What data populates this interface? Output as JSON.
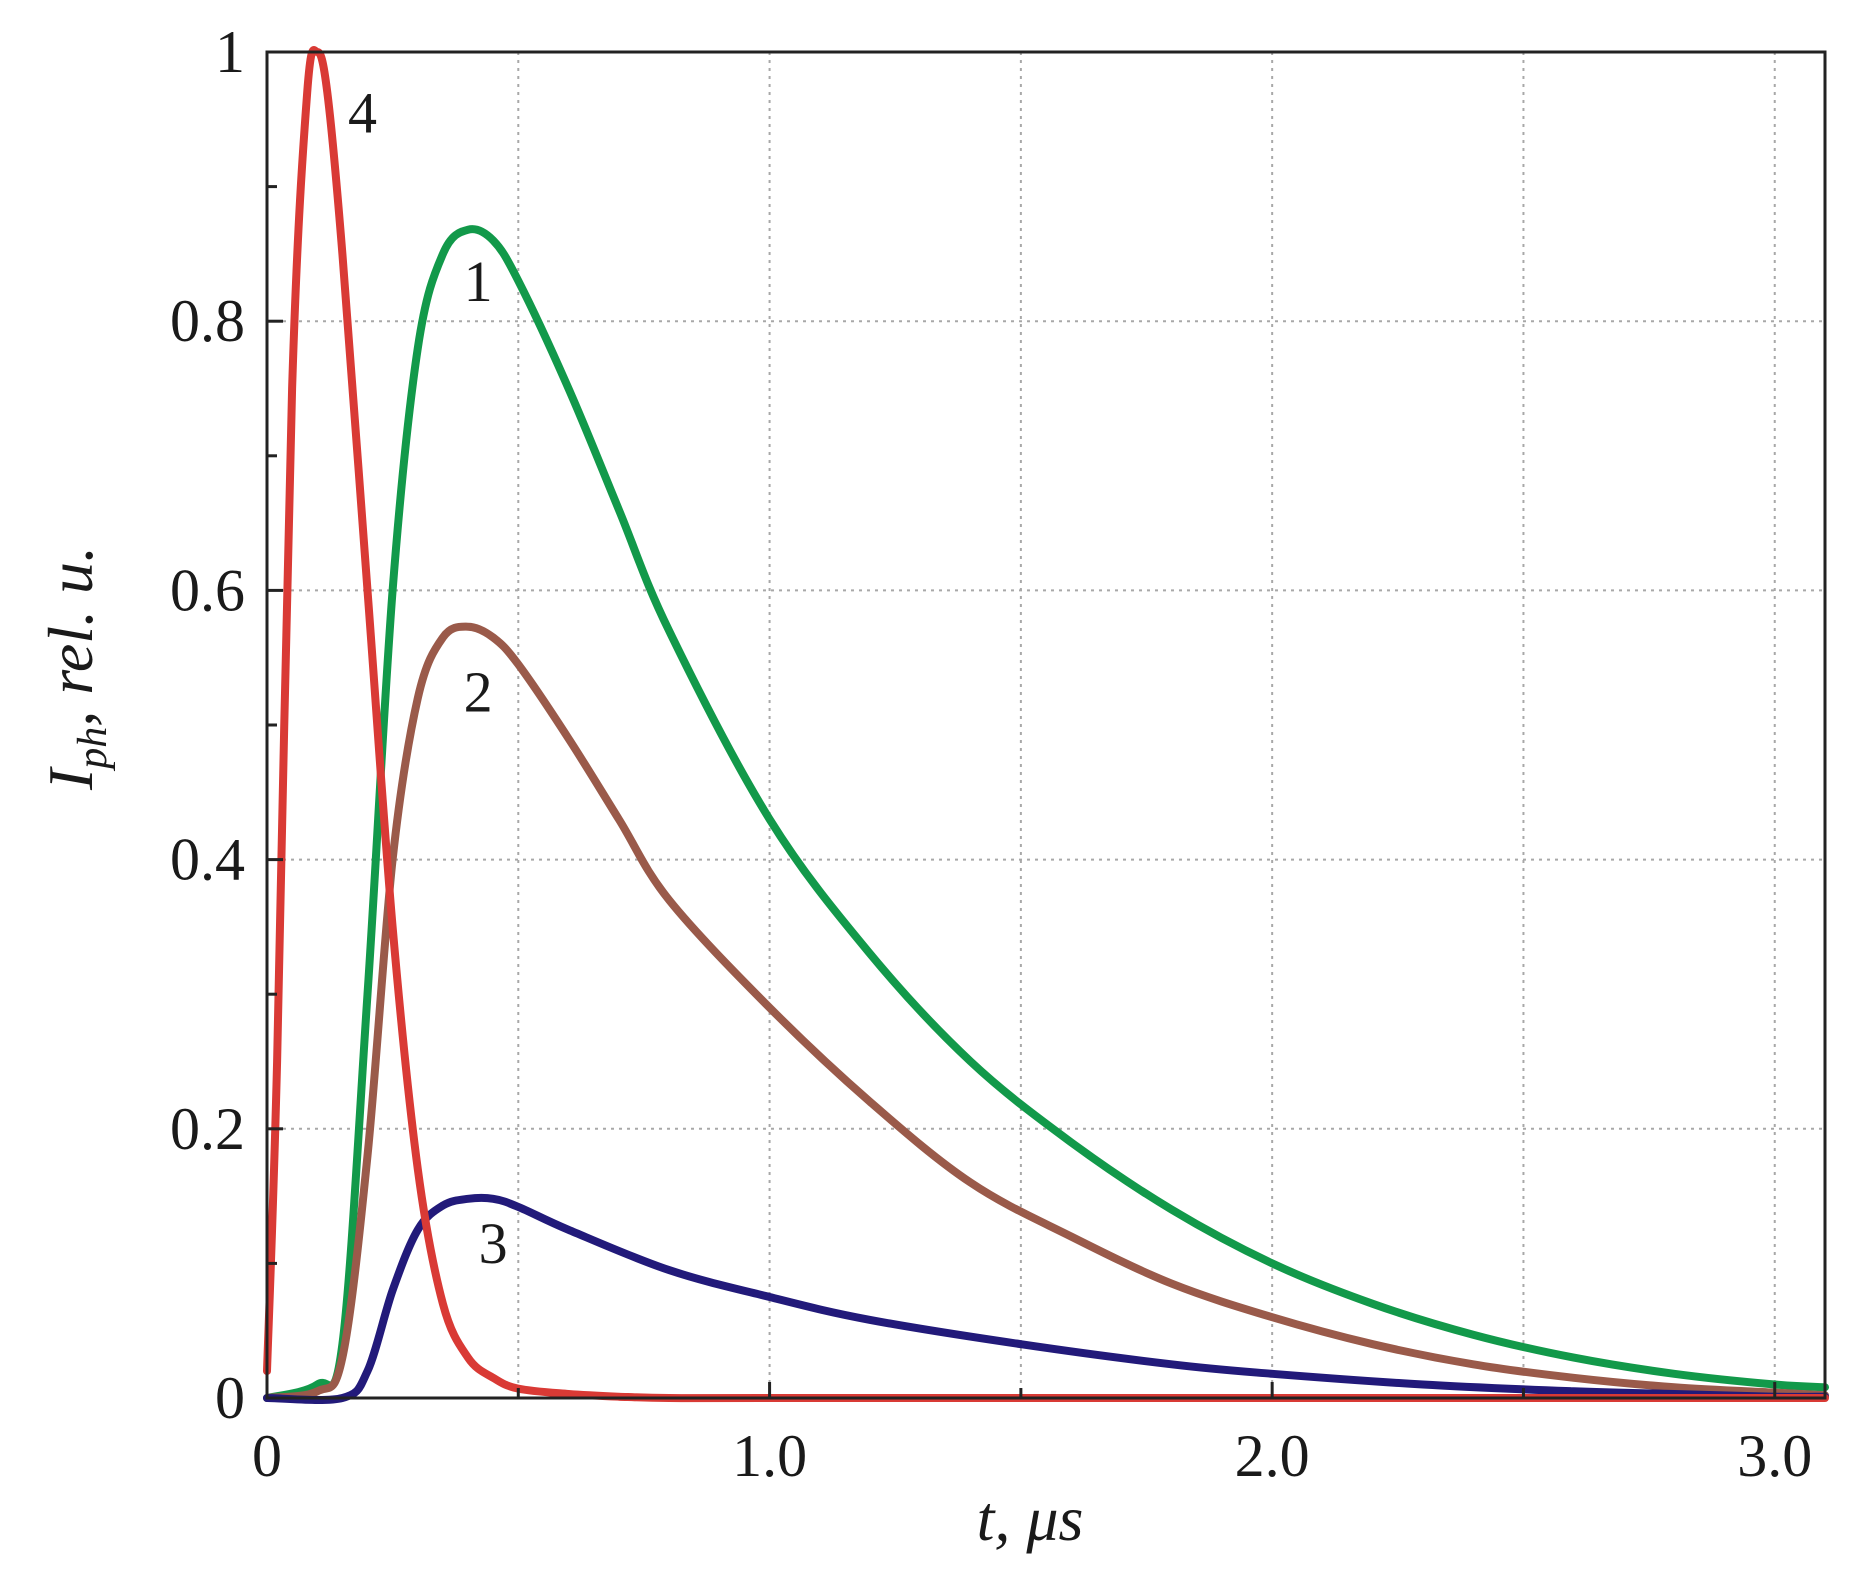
{
  "chart_data": {
    "type": "line",
    "title": "",
    "xlabel": {
      "main": "t, ",
      "unit_symbol": "μ",
      "unit_rest": "s"
    },
    "ylabel": {
      "main": "I",
      "sub": "ph",
      "rest": ", rel. u."
    },
    "xlim": [
      0,
      3.1
    ],
    "ylim": [
      0,
      1.0
    ],
    "grid": true,
    "x_ticks": [
      {
        "value": 0,
        "label": "0"
      },
      {
        "value": 1.0,
        "label": "1.0"
      },
      {
        "value": 2.0,
        "label": "2.0"
      },
      {
        "value": 3.0,
        "label": "3.0"
      }
    ],
    "x_grid": [
      0.5,
      1.0,
      1.5,
      2.0,
      2.5,
      3.0
    ],
    "y_ticks": [
      {
        "value": 0,
        "label": "0"
      },
      {
        "value": 0.2,
        "label": "0.2"
      },
      {
        "value": 0.4,
        "label": "0.4"
      },
      {
        "value": 0.6,
        "label": "0.6"
      },
      {
        "value": 0.8,
        "label": "0.8"
      },
      {
        "value": 1.0,
        "label": "1"
      }
    ],
    "y_grid": [
      0.2,
      0.4,
      0.6,
      0.8,
      1.0
    ],
    "series": [
      {
        "label": "1",
        "color": "#12994a",
        "x": [
          0,
          0.1,
          0.15,
          0.2,
          0.25,
          0.3,
          0.35,
          0.4,
          0.45,
          0.5,
          0.6,
          0.7,
          0.8,
          1.0,
          1.2,
          1.4,
          1.6,
          1.8,
          2.0,
          2.2,
          2.4,
          2.6,
          2.8,
          3.0,
          3.1
        ],
        "y": [
          0,
          0.01,
          0.04,
          0.3,
          0.6,
          0.78,
          0.85,
          0.868,
          0.86,
          0.83,
          0.75,
          0.66,
          0.57,
          0.43,
          0.33,
          0.25,
          0.19,
          0.14,
          0.1,
          0.07,
          0.047,
          0.03,
          0.018,
          0.01,
          0.008
        ],
        "label_pos": [
          0.42,
          0.83
        ]
      },
      {
        "label": "2",
        "color": "#9a5a4a",
        "x": [
          0,
          0.1,
          0.15,
          0.2,
          0.25,
          0.3,
          0.35,
          0.4,
          0.45,
          0.5,
          0.6,
          0.7,
          0.8,
          1.0,
          1.2,
          1.4,
          1.6,
          1.8,
          2.0,
          2.2,
          2.4,
          2.6,
          2.8,
          3.0,
          3.1
        ],
        "y": [
          0,
          0.005,
          0.03,
          0.18,
          0.4,
          0.52,
          0.565,
          0.573,
          0.565,
          0.545,
          0.49,
          0.43,
          0.37,
          0.29,
          0.22,
          0.16,
          0.12,
          0.085,
          0.06,
          0.04,
          0.025,
          0.015,
          0.008,
          0.004,
          0.002
        ],
        "label_pos": [
          0.42,
          0.525
        ]
      },
      {
        "label": "3",
        "color": "#221a7a",
        "x": [
          0,
          0.15,
          0.2,
          0.25,
          0.3,
          0.35,
          0.4,
          0.45,
          0.5,
          0.6,
          0.8,
          1.0,
          1.2,
          1.5,
          1.8,
          2.0,
          2.3,
          2.6,
          2.8,
          3.0,
          3.1
        ],
        "y": [
          0,
          0.0,
          0.02,
          0.08,
          0.125,
          0.143,
          0.148,
          0.148,
          0.142,
          0.125,
          0.095,
          0.075,
          0.058,
          0.04,
          0.025,
          0.018,
          0.01,
          0.005,
          0.003,
          0.001,
          0.001
        ],
        "label_pos": [
          0.45,
          0.115
        ]
      },
      {
        "label": "4",
        "color": "#d93a35",
        "x": [
          0,
          0.02,
          0.05,
          0.08,
          0.1,
          0.12,
          0.15,
          0.2,
          0.25,
          0.3,
          0.35,
          0.4,
          0.45,
          0.5,
          0.6,
          0.7,
          0.8,
          1.0,
          1.5,
          2.0,
          3.1
        ],
        "y": [
          0.02,
          0.25,
          0.75,
          0.97,
          1.0,
          0.97,
          0.85,
          0.6,
          0.35,
          0.17,
          0.07,
          0.03,
          0.015,
          0.007,
          0.003,
          0.001,
          0.0,
          0.0,
          0.0,
          0.0,
          0.0
        ],
        "label_pos": [
          0.19,
          0.955
        ]
      }
    ]
  }
}
